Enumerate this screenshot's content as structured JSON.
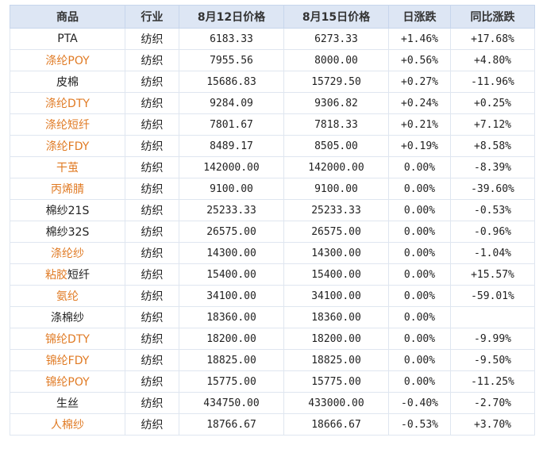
{
  "headers": [
    "商品",
    "行业",
    "8月12日价格",
    "8月15日价格",
    "日涨跌",
    "同比涨跌"
  ],
  "rows": [
    {
      "name": "PTA",
      "link": false,
      "industry": "纺织",
      "p1": "6183.33",
      "p2": "6273.33",
      "daily": "+1.46%",
      "daily_dir": "up",
      "yoy": "+17.68%",
      "yoy_dir": "up"
    },
    {
      "name": "涤纶POY",
      "link": true,
      "industry": "纺织",
      "p1": "7955.56",
      "p2": "8000.00",
      "daily": "+0.56%",
      "daily_dir": "up",
      "yoy": "+4.80%",
      "yoy_dir": "up"
    },
    {
      "name": "皮棉",
      "link": false,
      "industry": "纺织",
      "p1": "15686.83",
      "p2": "15729.50",
      "daily": "+0.27%",
      "daily_dir": "up",
      "yoy": "-11.96%",
      "yoy_dir": "down"
    },
    {
      "name": "涤纶DTY",
      "link": true,
      "industry": "纺织",
      "p1": "9284.09",
      "p2": "9306.82",
      "daily": "+0.24%",
      "daily_dir": "up",
      "yoy": "+0.25%",
      "yoy_dir": "up"
    },
    {
      "name": "涤纶短纤",
      "link": true,
      "industry": "纺织",
      "p1": "7801.67",
      "p2": "7818.33",
      "daily": "+0.21%",
      "daily_dir": "up",
      "yoy": "+7.12%",
      "yoy_dir": "up"
    },
    {
      "name": "涤纶FDY",
      "link": true,
      "industry": "纺织",
      "p1": "8489.17",
      "p2": "8505.00",
      "daily": "+0.19%",
      "daily_dir": "up",
      "yoy": "+8.58%",
      "yoy_dir": "up"
    },
    {
      "name": "干茧",
      "link": true,
      "industry": "纺织",
      "p1": "142000.00",
      "p2": "142000.00",
      "daily": "0.00%",
      "daily_dir": "flat",
      "yoy": "-8.39%",
      "yoy_dir": "down"
    },
    {
      "name": "丙烯腈",
      "link": true,
      "industry": "纺织",
      "p1": "9100.00",
      "p2": "9100.00",
      "daily": "0.00%",
      "daily_dir": "flat",
      "yoy": "-39.60%",
      "yoy_dir": "down"
    },
    {
      "name": "棉纱21S",
      "link": false,
      "industry": "纺织",
      "p1": "25233.33",
      "p2": "25233.33",
      "daily": "0.00%",
      "daily_dir": "flat",
      "yoy": "-0.53%",
      "yoy_dir": "down"
    },
    {
      "name": "棉纱32S",
      "link": false,
      "industry": "纺织",
      "p1": "26575.00",
      "p2": "26575.00",
      "daily": "0.00%",
      "daily_dir": "flat",
      "yoy": "-0.96%",
      "yoy_dir": "down"
    },
    {
      "name": "涤纶纱",
      "link": true,
      "industry": "纺织",
      "p1": "14300.00",
      "p2": "14300.00",
      "daily": "0.00%",
      "daily_dir": "flat",
      "yoy": "-1.04%",
      "yoy_dir": "down"
    },
    {
      "name": "粘胶短纤",
      "link": "partial",
      "name_link": "粘胶",
      "name_rest": "短纤",
      "industry": "纺织",
      "p1": "15400.00",
      "p2": "15400.00",
      "daily": "0.00%",
      "daily_dir": "flat",
      "yoy": "+15.57%",
      "yoy_dir": "up"
    },
    {
      "name": "氨纶",
      "link": true,
      "industry": "纺织",
      "p1": "34100.00",
      "p2": "34100.00",
      "daily": "0.00%",
      "daily_dir": "flat",
      "yoy": "-59.01%",
      "yoy_dir": "down"
    },
    {
      "name": "涤棉纱",
      "link": false,
      "industry": "纺织",
      "p1": "18360.00",
      "p2": "18360.00",
      "daily": "0.00%",
      "daily_dir": "flat",
      "yoy": "",
      "yoy_dir": "flat"
    },
    {
      "name": "锦纶DTY",
      "link": true,
      "industry": "纺织",
      "p1": "18200.00",
      "p2": "18200.00",
      "daily": "0.00%",
      "daily_dir": "flat",
      "yoy": "-9.99%",
      "yoy_dir": "down"
    },
    {
      "name": "锦纶FDY",
      "link": true,
      "industry": "纺织",
      "p1": "18825.00",
      "p2": "18825.00",
      "daily": "0.00%",
      "daily_dir": "flat",
      "yoy": "-9.50%",
      "yoy_dir": "down"
    },
    {
      "name": "锦纶POY",
      "link": true,
      "industry": "纺织",
      "p1": "15775.00",
      "p2": "15775.00",
      "daily": "0.00%",
      "daily_dir": "flat",
      "yoy": "-11.25%",
      "yoy_dir": "down"
    },
    {
      "name": "生丝",
      "link": false,
      "industry": "纺织",
      "p1": "434750.00",
      "p2": "433000.00",
      "daily": "-0.40%",
      "daily_dir": "down",
      "yoy": "-2.70%",
      "yoy_dir": "down"
    },
    {
      "name": "人棉纱",
      "link": true,
      "industry": "纺织",
      "p1": "18766.67",
      "p2": "18666.67",
      "daily": "-0.53%",
      "daily_dir": "down",
      "yoy": "+3.70%",
      "yoy_dir": "up"
    }
  ],
  "colors": {
    "header_bg": "#dde6f4",
    "link": "#e07a23",
    "up": "#e4000f",
    "down": "#138a13"
  }
}
